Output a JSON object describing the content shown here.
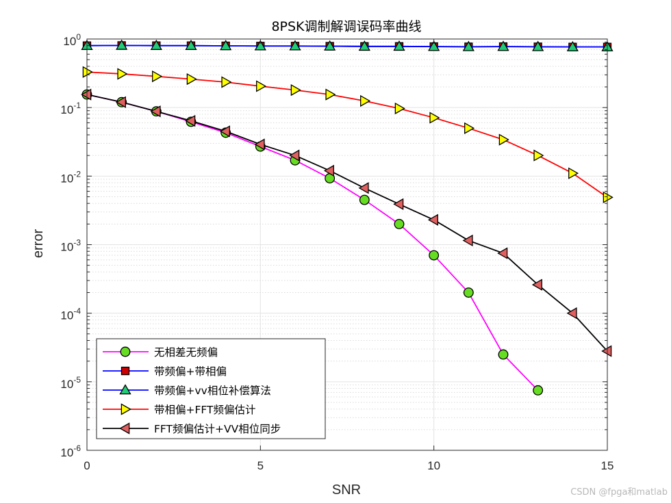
{
  "chart_data": {
    "type": "line",
    "title": "8PSK调制解调误码率曲线",
    "xlabel": "SNR",
    "ylabel": "error",
    "xlim": [
      0,
      15
    ],
    "ylim": [
      1e-06,
      1
    ],
    "yscale": "log",
    "grid": true,
    "legend_position": "bottom-left",
    "x_ticks": [
      0,
      5,
      10,
      15
    ],
    "y_ticks": [
      {
        "base": "10",
        "exp": "0",
        "value": 1
      },
      {
        "base": "10",
        "exp": "-1",
        "value": 0.1
      },
      {
        "base": "10",
        "exp": "-2",
        "value": 0.01
      },
      {
        "base": "10",
        "exp": "-3",
        "value": 0.001
      },
      {
        "base": "10",
        "exp": "-4",
        "value": 0.0001
      },
      {
        "base": "10",
        "exp": "-5",
        "value": 1e-05
      },
      {
        "base": "10",
        "exp": "-6",
        "value": 1e-06
      }
    ],
    "series": [
      {
        "name": "无相差无频偏",
        "line_color": "#ff00ff",
        "marker": "circle",
        "marker_fill": "#66dd22",
        "x": [
          0,
          1,
          2,
          3,
          4,
          5,
          6,
          7,
          8,
          9,
          10,
          11,
          12,
          13
        ],
        "y": [
          0.155,
          0.12,
          0.088,
          0.062,
          0.043,
          0.027,
          0.017,
          0.0093,
          0.0045,
          0.002,
          0.0007,
          0.0002,
          2.5e-05,
          7.5e-06
        ]
      },
      {
        "name": "带频偏+带相偏",
        "line_color": "#0000ff",
        "marker": "square",
        "marker_fill": "#cc0000",
        "x": [
          0,
          1,
          2,
          3,
          4,
          5,
          6,
          7,
          8,
          9,
          10,
          11,
          12,
          13,
          14,
          15
        ],
        "y": [
          0.8,
          0.805,
          0.8,
          0.8,
          0.795,
          0.79,
          0.79,
          0.785,
          0.78,
          0.78,
          0.775,
          0.77,
          0.775,
          0.77,
          0.765,
          0.765
        ]
      },
      {
        "name": "带频偏+vv相位补偿算法",
        "line_color": "#0000ff",
        "marker": "triangle-up",
        "marker_fill": "#22cc77",
        "x": [
          0,
          1,
          2,
          3,
          4,
          5,
          6,
          7,
          8,
          9,
          10,
          11,
          12,
          13,
          14,
          15
        ],
        "y": [
          0.8,
          0.805,
          0.8,
          0.8,
          0.795,
          0.79,
          0.79,
          0.785,
          0.78,
          0.78,
          0.775,
          0.77,
          0.775,
          0.77,
          0.765,
          0.765
        ]
      },
      {
        "name": "带相偏+FFT频偏估计",
        "line_color": "#ff0000",
        "marker": "triangle-right",
        "marker_fill": "#ffff00",
        "x": [
          0,
          1,
          2,
          3,
          4,
          5,
          6,
          7,
          8,
          9,
          10,
          11,
          12,
          13,
          14,
          15
        ],
        "y": [
          0.33,
          0.31,
          0.285,
          0.26,
          0.235,
          0.205,
          0.18,
          0.155,
          0.125,
          0.097,
          0.071,
          0.05,
          0.034,
          0.02,
          0.011,
          0.0049
        ]
      },
      {
        "name": "FFT频偏估计+VV相位同步",
        "line_color": "#000000",
        "marker": "triangle-left",
        "marker_fill": "#e06060",
        "x": [
          0,
          1,
          2,
          3,
          4,
          5,
          6,
          7,
          8,
          9,
          10,
          11,
          12,
          13,
          14,
          15
        ],
        "y": [
          0.155,
          0.12,
          0.088,
          0.064,
          0.045,
          0.029,
          0.02,
          0.012,
          0.0067,
          0.0039,
          0.0023,
          0.00115,
          0.00075,
          0.00026,
          0.0001,
          2.8e-05
        ]
      }
    ]
  },
  "watermark": "CSDN @fpga和matlab"
}
